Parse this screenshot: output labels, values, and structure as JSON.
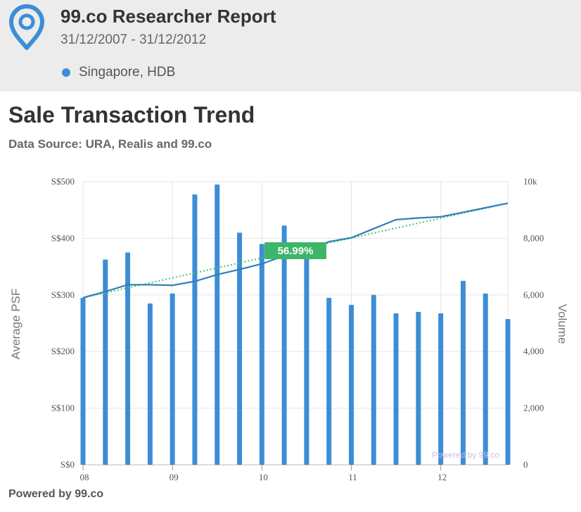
{
  "header": {
    "title": "99.co Researcher Report",
    "date_range": "31/12/2007 - 31/12/2012",
    "region": "Singapore, HDB",
    "logo_icon": "map-pin-icon",
    "accent": "#3b8ed6"
  },
  "section": {
    "title": "Sale Transaction Trend",
    "source": "Data Source: URA, Realis and 99.co"
  },
  "footer": {
    "text": "Powered by 99.co"
  },
  "chart_data": {
    "type": "bar",
    "x_tick_labels": [
      "08",
      "09",
      "10",
      "11",
      "12"
    ],
    "y_left_label": "Average PSF",
    "y_left_ticks": [
      "S$0",
      "S$100",
      "S$200",
      "S$300",
      "S$400",
      "S$500"
    ],
    "y_left_range": [
      0,
      500
    ],
    "y_right_label": "Volume",
    "y_right_ticks": [
      "0",
      "2,000",
      "4,000",
      "6,000",
      "8,000",
      "10k"
    ],
    "y_right_range": [
      0,
      10000
    ],
    "grid": true,
    "watermark": "Powered by 99.co",
    "change_label": "56.99%",
    "series": [
      {
        "name": "Volume",
        "kind": "bar",
        "axis": "right",
        "color": "#3b8ed6",
        "values": [
          5900,
          7250,
          7500,
          5700,
          6050,
          9550,
          9900,
          8200,
          7800,
          8450,
          7500,
          5900,
          5650,
          6000,
          5350,
          5400,
          5350,
          6500,
          6050,
          5150
        ]
      },
      {
        "name": "Average PSF",
        "kind": "line",
        "axis": "left",
        "color": "#2e7fb8",
        "values": [
          295,
          306,
          318,
          318,
          317,
          324,
          336,
          345,
          355,
          369,
          379,
          394,
          401,
          417,
          433,
          436,
          438,
          446,
          454,
          462
        ]
      },
      {
        "name": "Trend",
        "kind": "dotted",
        "axis": "left",
        "color": "#4cbf6a",
        "values": [
          295,
          462
        ]
      }
    ]
  }
}
